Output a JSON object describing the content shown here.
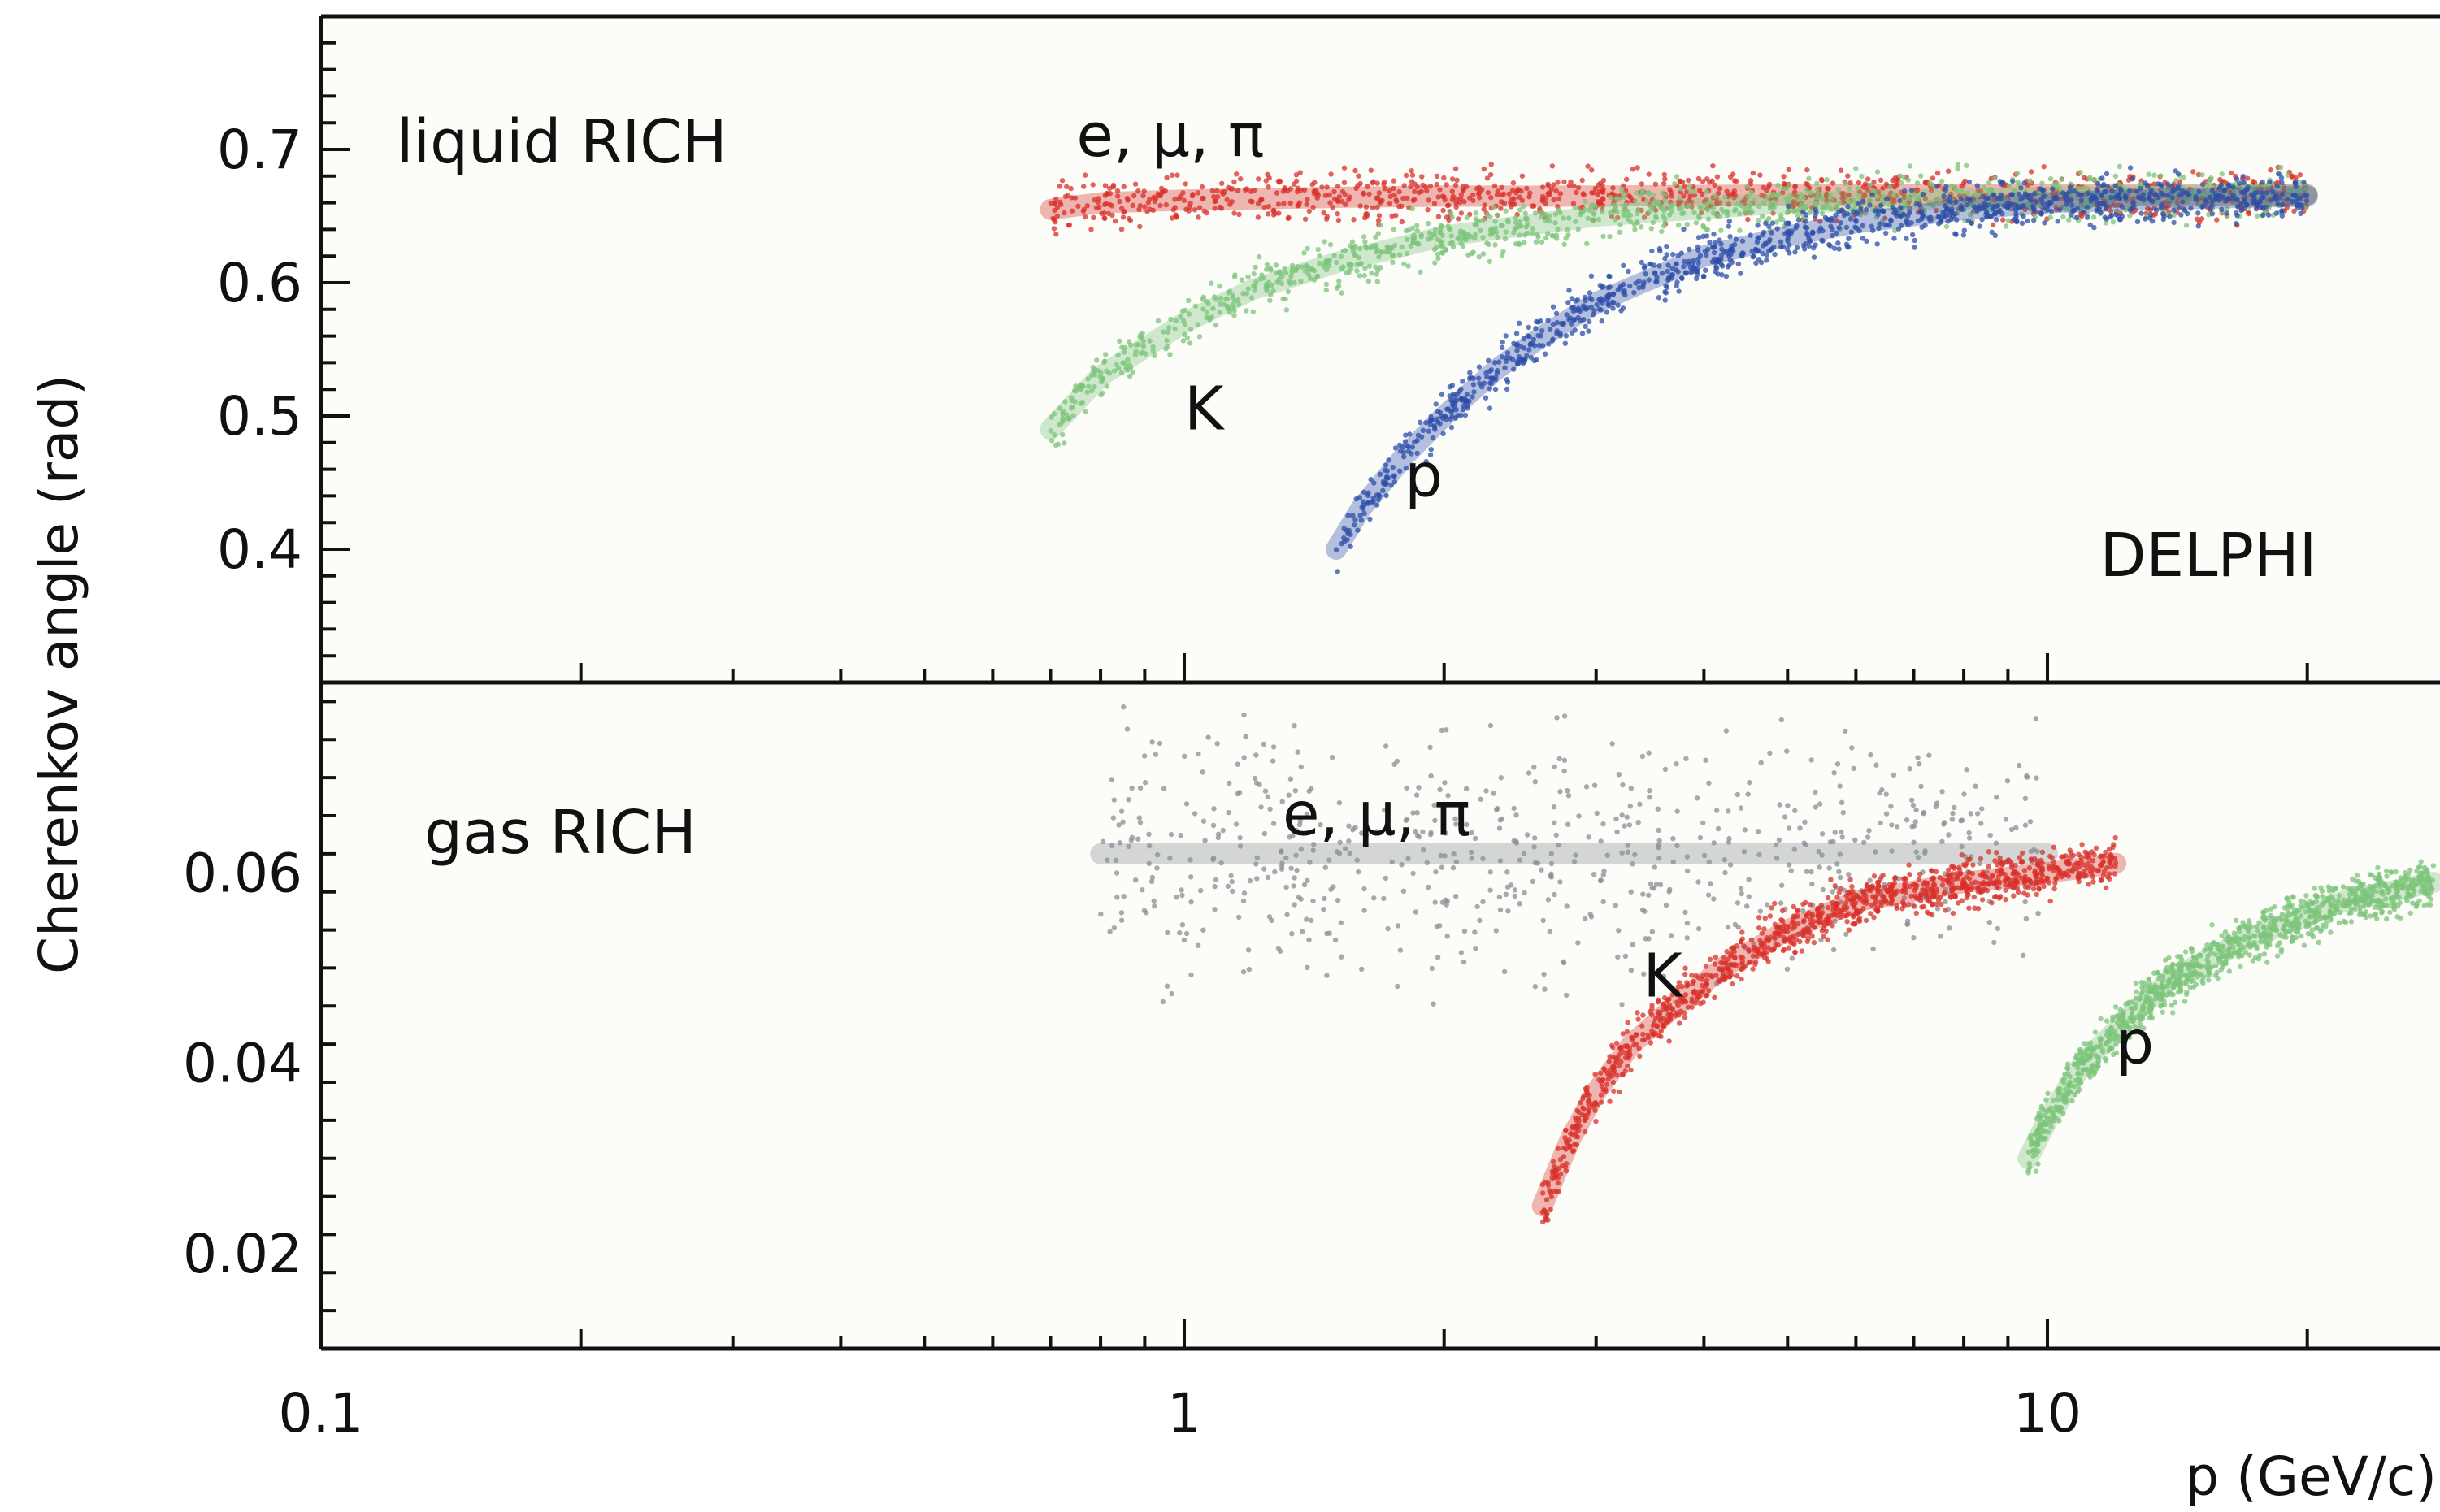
{
  "chart_data": [
    {
      "type": "scatter",
      "panel_label": "liquid RICH",
      "ylabel": "Cherenkov angle (rad)",
      "xlabel": "p (GeV/c)",
      "xscale": "log",
      "xlim": [
        0.1,
        30
      ],
      "ylim": [
        0.3,
        0.8
      ],
      "y_ticks": [
        0.4,
        0.5,
        0.6,
        0.7
      ],
      "y_tick_labels": [
        "0.4",
        "0.5",
        "0.6",
        "0.7"
      ],
      "annotations": [
        {
          "text": "e, μ, π",
          "x": 0.75,
          "y": 0.695
        },
        {
          "text": "K",
          "x": 1.0,
          "y": 0.49
        },
        {
          "text": "p",
          "x": 1.8,
          "y": 0.44
        },
        {
          "text": "DELPHI",
          "x": 11.5,
          "y": 0.38
        }
      ],
      "series": [
        {
          "name": "e, μ, π",
          "color": "#d8302a",
          "x": [
            0.7,
            0.8,
            1.0,
            1.5,
            2,
            3,
            5,
            8,
            12,
            20
          ],
          "y": [
            0.655,
            0.66,
            0.662,
            0.664,
            0.665,
            0.665,
            0.666,
            0.666,
            0.666,
            0.666
          ]
        },
        {
          "name": "K",
          "color": "#7cc47a",
          "x": [
            0.7,
            0.8,
            1.0,
            1.2,
            1.5,
            2,
            3,
            5,
            8,
            12,
            20
          ],
          "y": [
            0.49,
            0.53,
            0.57,
            0.595,
            0.615,
            0.635,
            0.65,
            0.66,
            0.663,
            0.665,
            0.666
          ]
        },
        {
          "name": "p",
          "color": "#2d4ea8",
          "x": [
            1.5,
            1.6,
            1.8,
            2.0,
            2.3,
            2.6,
            3,
            4,
            5,
            6,
            8,
            10,
            14,
            20
          ],
          "y": [
            0.4,
            0.43,
            0.47,
            0.5,
            0.535,
            0.56,
            0.585,
            0.62,
            0.635,
            0.645,
            0.655,
            0.66,
            0.663,
            0.665
          ]
        }
      ]
    },
    {
      "type": "scatter",
      "panel_label": "gas RICH",
      "ylabel": "Cherenkov angle (rad)",
      "xlabel": "p (GeV/c)",
      "xscale": "log",
      "xlim": [
        0.1,
        30
      ],
      "ylim": [
        0.01,
        0.08
      ],
      "y_ticks": [
        0.02,
        0.04,
        0.06
      ],
      "y_tick_labels": [
        "0.02",
        "0.04",
        "0.06"
      ],
      "x_ticks": [
        0.1,
        1,
        10
      ],
      "x_tick_labels": [
        "0.1",
        "1",
        "10"
      ],
      "annotations": [
        {
          "text": "e, μ, π",
          "x": 1.3,
          "y": 0.064
        },
        {
          "text": "K",
          "x": 3.4,
          "y": 0.047
        },
        {
          "text": "p",
          "x": 12,
          "y": 0.04
        }
      ],
      "series": [
        {
          "name": "e, μ, π",
          "color": "#8a8f96",
          "x": [
            0.8,
            1,
            1.5,
            2,
            3,
            5,
            10
          ],
          "y": [
            0.062,
            0.062,
            0.062,
            0.062,
            0.062,
            0.062,
            0.062
          ]
        },
        {
          "name": "K",
          "color": "#d8302a",
          "x": [
            2.6,
            2.8,
            3.0,
            3.3,
            3.7,
            4.2,
            5,
            6,
            8,
            10,
            12
          ],
          "y": [
            0.025,
            0.032,
            0.037,
            0.042,
            0.046,
            0.05,
            0.054,
            0.057,
            0.059,
            0.06,
            0.061
          ]
        },
        {
          "name": "p",
          "color": "#7cc47a",
          "x": [
            9.5,
            10,
            11,
            12.5,
            14,
            17,
            22,
            28
          ],
          "y": [
            0.03,
            0.034,
            0.04,
            0.045,
            0.049,
            0.053,
            0.057,
            0.059
          ]
        }
      ]
    }
  ]
}
